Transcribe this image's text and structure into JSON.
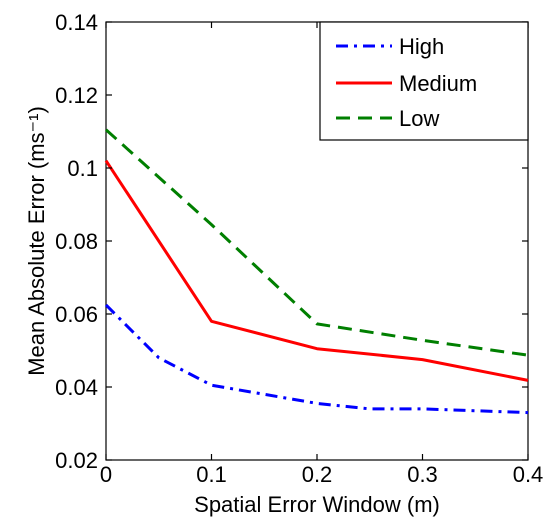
{
  "chart_data": {
    "type": "line",
    "xlabel": "Spatial Error Window (m)",
    "ylabel": "Mean Absolute Error (ms⁻¹)",
    "xlim": [
      0,
      0.4
    ],
    "ylim": [
      0.02,
      0.14
    ],
    "xticks": [
      0,
      0.1,
      0.2,
      0.3,
      0.4
    ],
    "xtick_labels": [
      "0",
      "0.1",
      "0.2",
      "0.3",
      "0.4"
    ],
    "yticks": [
      0.02,
      0.04,
      0.06,
      0.08,
      0.1,
      0.12,
      0.14
    ],
    "ytick_labels": [
      "0.02",
      "0.04",
      "0.06",
      "0.08",
      "0.1",
      "0.12",
      "0.14"
    ],
    "grid": false,
    "legend_position": "top-right",
    "series": [
      {
        "name": "High",
        "color": "#0000ff",
        "dash": "dash-dot",
        "x": [
          0,
          0.05,
          0.1,
          0.2,
          0.25,
          0.3,
          0.4
        ],
        "y": [
          0.0625,
          0.048,
          0.0405,
          0.0355,
          0.034,
          0.034,
          0.033
        ]
      },
      {
        "name": "Medium",
        "color": "#ff0000",
        "dash": "solid",
        "x": [
          0,
          0.1,
          0.2,
          0.3,
          0.4
        ],
        "y": [
          0.102,
          0.058,
          0.0505,
          0.0475,
          0.0418
        ]
      },
      {
        "name": "Low",
        "color": "#007f00",
        "dash": "dashed",
        "x": [
          0,
          0.1,
          0.2,
          0.3,
          0.4
        ],
        "y": [
          0.1105,
          0.0845,
          0.0573,
          0.0528,
          0.0487
        ]
      }
    ]
  }
}
